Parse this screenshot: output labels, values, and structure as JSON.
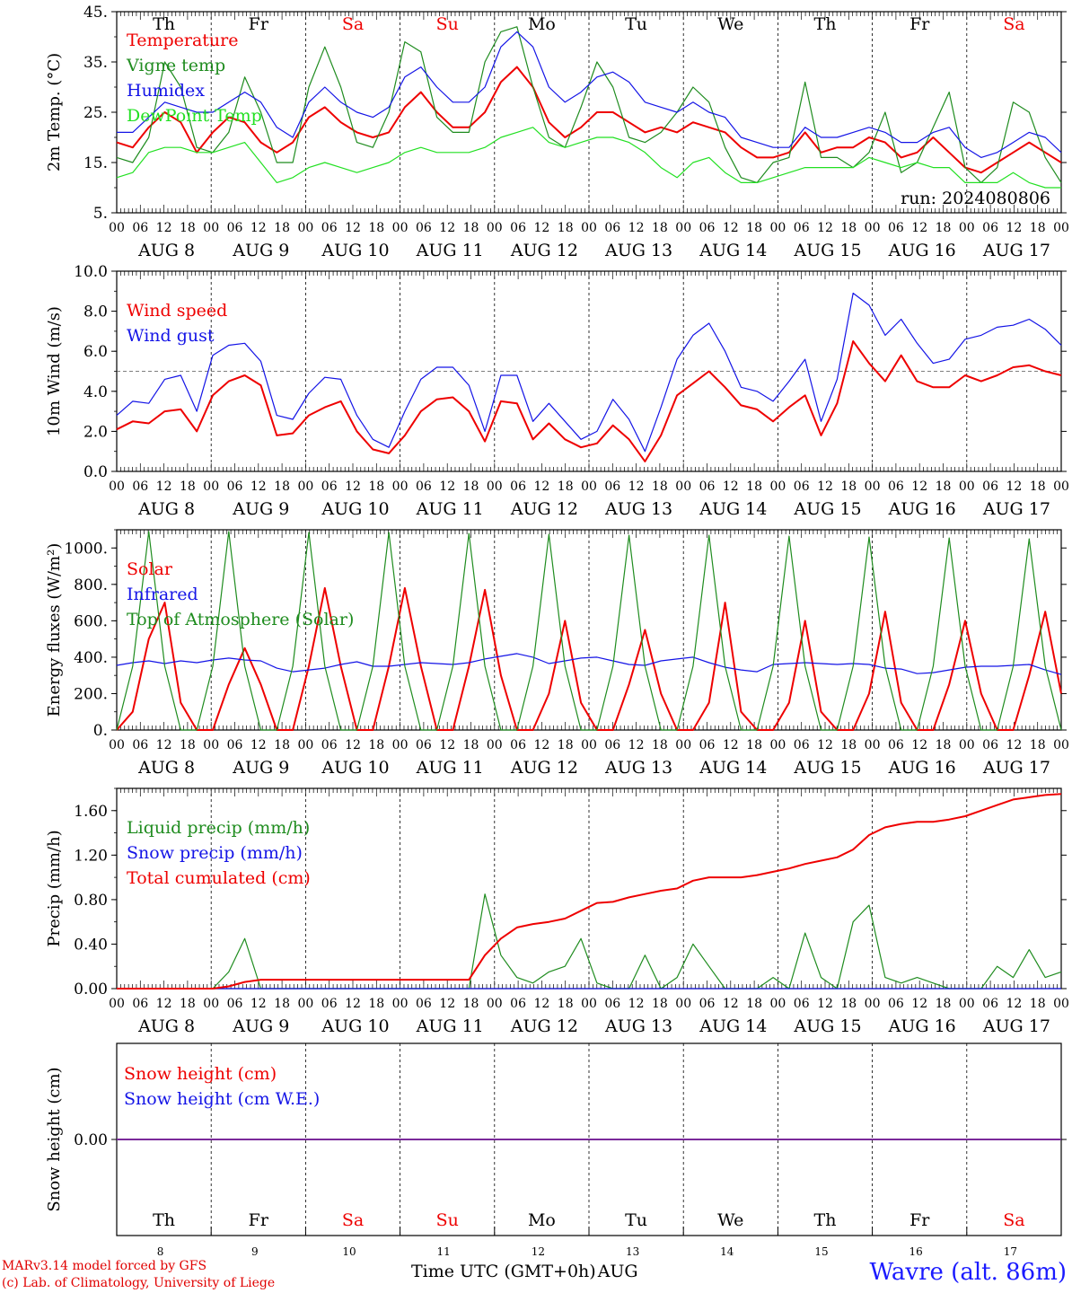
{
  "run_label": "run: 2024080806",
  "hour_ticks": [
    "00",
    "06",
    "12",
    "18"
  ],
  "last_hour": "00",
  "day_labels": [
    "AUG  8",
    "AUG  9",
    "AUG 10",
    "AUG 11",
    "AUG 12",
    "AUG 13",
    "AUG 14",
    "AUG 15",
    "AUG 16",
    "AUG 17"
  ],
  "weekdays": [
    "Th",
    "Fr",
    "Sa",
    "Su",
    "Mo",
    "Tu",
    "We",
    "Th",
    "Fr",
    "Sa"
  ],
  "weekend_flags": [
    false,
    false,
    true,
    true,
    false,
    false,
    false,
    false,
    false,
    true
  ],
  "bottom_day_numbers": [
    "8",
    "9",
    "10",
    "11",
    "12",
    "13",
    "14",
    "15",
    "16",
    "17"
  ],
  "x_axis_title": "Time UTC (GMT+0h)",
  "x_axis_month": "AUG",
  "credit_line1": "MARv3.14 model forced by GFS",
  "credit_line2": "(c) Lab. of Climatology, University of Liege",
  "station": "Wavre (alt. 86m)",
  "colors": {
    "red": "#ee0000",
    "green": "#1f8c1f",
    "blue": "#1414e6",
    "light_green": "#22e022",
    "purple": "#7a2a9a"
  },
  "chart_data": [
    {
      "type": "line",
      "ylabel": "2m Temp. (°C)",
      "ylim": [
        5,
        45
      ],
      "yticks": [
        "5.",
        "15.",
        "25.",
        "35.",
        "45."
      ],
      "x_start": "2024-08-08 00:00 UTC",
      "x_step_hours": 6,
      "series": [
        {
          "name": "Temperature",
          "color": "red",
          "values": [
            19,
            18,
            22,
            25,
            23,
            17,
            21,
            24,
            23,
            19,
            17,
            19,
            24,
            26,
            23,
            21,
            20,
            21,
            26,
            29,
            25,
            22,
            22,
            25,
            31,
            34,
            30,
            23,
            20,
            22,
            25,
            25,
            23,
            21,
            22,
            21,
            23,
            22,
            21,
            18,
            16,
            16,
            17,
            21,
            17,
            18,
            18,
            20,
            19,
            16,
            17,
            20,
            17,
            14,
            13,
            15,
            17,
            19,
            17,
            15
          ]
        },
        {
          "name": "Vigne temp",
          "color": "green",
          "values": [
            16,
            15,
            20,
            35,
            30,
            18,
            17,
            21,
            32,
            25,
            15,
            15,
            30,
            38,
            30,
            19,
            18,
            25,
            39,
            37,
            24,
            21,
            21,
            35,
            41,
            42,
            30,
            20,
            18,
            26,
            35,
            30,
            20,
            19,
            21,
            25,
            30,
            27,
            18,
            12,
            11,
            15,
            16,
            31,
            16,
            16,
            14,
            17,
            25,
            13,
            15,
            22,
            29,
            14,
            11,
            14,
            27,
            25,
            16,
            11
          ]
        },
        {
          "name": "Humidex",
          "color": "blue",
          "values": [
            21,
            21,
            24,
            27,
            26,
            25,
            25,
            27,
            29,
            27,
            22,
            20,
            27,
            30,
            27,
            25,
            24,
            26,
            32,
            34,
            30,
            27,
            27,
            30,
            38,
            41,
            38,
            30,
            27,
            29,
            32,
            33,
            31,
            27,
            26,
            25,
            27,
            25,
            24,
            20,
            19,
            18,
            18,
            22,
            20,
            20,
            21,
            22,
            21,
            19,
            19,
            21,
            22,
            18,
            16,
            17,
            19,
            21,
            20,
            17
          ]
        },
        {
          "name": "DewPoint Temp",
          "color": "light_green",
          "values": [
            12,
            13,
            17,
            18,
            18,
            17,
            17,
            18,
            19,
            15,
            11,
            12,
            14,
            15,
            14,
            13,
            14,
            15,
            17,
            18,
            17,
            17,
            17,
            18,
            20,
            21,
            22,
            19,
            18,
            19,
            20,
            20,
            19,
            17,
            14,
            12,
            15,
            16,
            13,
            11,
            11,
            12,
            13,
            14,
            14,
            14,
            14,
            16,
            15,
            14,
            15,
            14,
            14,
            11,
            11,
            11,
            13,
            11,
            10,
            10
          ]
        }
      ],
      "legend": "left"
    },
    {
      "type": "line",
      "ylabel": "10m Wind (m/s)",
      "ylim": [
        0,
        10
      ],
      "yticks": [
        "0.0",
        "2.0",
        "4.0",
        "6.0",
        "8.0",
        "10.0"
      ],
      "reference_line": 5.0,
      "x_start": "2024-08-08 00:00 UTC",
      "x_step_hours": 6,
      "series": [
        {
          "name": "Wind speed",
          "color": "red",
          "values": [
            2.1,
            2.5,
            2.4,
            3.0,
            3.1,
            2.0,
            3.8,
            4.5,
            4.8,
            4.3,
            1.8,
            1.9,
            2.8,
            3.2,
            3.5,
            2.0,
            1.1,
            0.9,
            1.8,
            3.0,
            3.6,
            3.7,
            3.0,
            1.5,
            3.5,
            3.4,
            1.6,
            2.4,
            1.6,
            1.2,
            1.4,
            2.3,
            1.6,
            0.5,
            1.8,
            3.8,
            4.4,
            5.0,
            4.2,
            3.3,
            3.1,
            2.5,
            3.2,
            3.8,
            1.8,
            3.4,
            6.5,
            5.4,
            4.5,
            5.8,
            4.5,
            4.2,
            4.2,
            4.8,
            4.5,
            4.8,
            5.2,
            5.3,
            5.0,
            4.8
          ]
        },
        {
          "name": "Wind gust",
          "color": "blue",
          "values": [
            2.8,
            3.5,
            3.4,
            4.6,
            4.8,
            3.0,
            5.8,
            6.3,
            6.4,
            5.5,
            2.8,
            2.6,
            3.9,
            4.7,
            4.6,
            2.8,
            1.6,
            1.2,
            3.0,
            4.6,
            5.2,
            5.2,
            4.3,
            2.0,
            4.8,
            4.8,
            2.5,
            3.4,
            2.5,
            1.6,
            2.0,
            3.6,
            2.6,
            1.0,
            3.2,
            5.6,
            6.8,
            7.4,
            6.0,
            4.2,
            4.0,
            3.5,
            4.5,
            5.6,
            2.5,
            4.6,
            8.9,
            8.3,
            6.8,
            7.6,
            6.4,
            5.4,
            5.6,
            6.6,
            6.8,
            7.2,
            7.3,
            7.6,
            7.1,
            6.3
          ]
        }
      ],
      "legend": "left"
    },
    {
      "type": "line",
      "ylabel": "Energy fluxes (W/m²)",
      "ylim": [
        0,
        1100
      ],
      "yticks": [
        "0.",
        "200.",
        "400.",
        "600.",
        "800.",
        "1000."
      ],
      "x_start": "2024-08-08 00:00 UTC",
      "x_step_hours": 6,
      "series": [
        {
          "name": "Solar",
          "color": "red",
          "values": [
            0,
            100,
            500,
            700,
            150,
            0,
            0,
            250,
            450,
            250,
            0,
            0,
            350,
            780,
            350,
            0,
            0,
            350,
            780,
            350,
            0,
            0,
            350,
            770,
            300,
            0,
            0,
            200,
            600,
            150,
            0,
            0,
            250,
            550,
            200,
            0,
            0,
            150,
            700,
            100,
            0,
            0,
            150,
            600,
            100,
            0,
            0,
            200,
            650,
            150,
            0,
            0,
            250,
            600,
            200,
            0,
            0,
            300,
            650,
            200
          ]
        },
        {
          "name": "Infrared",
          "color": "blue",
          "values": [
            355,
            370,
            380,
            365,
            380,
            370,
            385,
            395,
            385,
            380,
            340,
            320,
            330,
            340,
            360,
            375,
            350,
            350,
            360,
            370,
            365,
            360,
            370,
            390,
            405,
            420,
            400,
            365,
            380,
            395,
            400,
            380,
            360,
            355,
            380,
            390,
            400,
            370,
            345,
            330,
            320,
            360,
            365,
            370,
            365,
            360,
            365,
            360,
            340,
            335,
            310,
            315,
            330,
            345,
            350,
            350,
            355,
            360,
            330,
            305
          ]
        },
        {
          "name": "Top of Atmosphere (Solar)",
          "color": "green",
          "values": [
            0,
            350,
            1090,
            350,
            0,
            0,
            350,
            1090,
            350,
            0,
            0,
            350,
            1085,
            350,
            0,
            0,
            350,
            1085,
            350,
            0,
            0,
            350,
            1080,
            350,
            0,
            0,
            350,
            1075,
            350,
            0,
            0,
            350,
            1070,
            350,
            0,
            0,
            350,
            1070,
            350,
            0,
            0,
            350,
            1065,
            350,
            0,
            0,
            350,
            1060,
            350,
            0,
            0,
            350,
            1055,
            350,
            0,
            0,
            350,
            1050,
            350,
            0
          ]
        }
      ],
      "legend": "left"
    },
    {
      "type": "line",
      "ylabel": "Precip (mm/h)",
      "ylim": [
        0,
        1.8
      ],
      "yticks": [
        "0.00",
        "0.40",
        "0.80",
        "1.20",
        "1.60"
      ],
      "x_start": "2024-08-08 00:00 UTC",
      "x_step_hours": 6,
      "series": [
        {
          "name": "Liquid precip (mm/h)",
          "color": "green",
          "values": [
            0,
            0,
            0,
            0,
            0,
            0,
            0,
            0.15,
            0.45,
            0,
            0,
            0,
            0,
            0,
            0,
            0,
            0,
            0,
            0,
            0,
            0,
            0,
            0,
            0.85,
            0.3,
            0.1,
            0.05,
            0.15,
            0.2,
            0.45,
            0.05,
            0,
            0,
            0.3,
            0,
            0.1,
            0.4,
            0.2,
            0,
            0,
            0,
            0.1,
            0,
            0.5,
            0.1,
            0,
            0.6,
            0.75,
            0.1,
            0.05,
            0.1,
            0.05,
            0,
            0,
            0,
            0.2,
            0.1,
            0.35,
            0.1,
            0.15
          ]
        },
        {
          "name": "Snow precip (mm/h)",
          "color": "blue",
          "values": [
            0,
            0,
            0,
            0,
            0,
            0,
            0,
            0,
            0,
            0,
            0,
            0,
            0,
            0,
            0,
            0,
            0,
            0,
            0,
            0,
            0,
            0,
            0,
            0,
            0,
            0,
            0,
            0,
            0,
            0,
            0,
            0,
            0,
            0,
            0,
            0,
            0,
            0,
            0,
            0,
            0,
            0,
            0,
            0,
            0,
            0,
            0,
            0,
            0,
            0,
            0,
            0,
            0,
            0,
            0,
            0,
            0,
            0,
            0,
            0
          ]
        },
        {
          "name": "Total cumulated (cm)",
          "color": "red",
          "values": [
            0,
            0,
            0,
            0,
            0,
            0,
            0,
            0.02,
            0.06,
            0.08,
            0.08,
            0.08,
            0.08,
            0.08,
            0.08,
            0.08,
            0.08,
            0.08,
            0.08,
            0.08,
            0.08,
            0.08,
            0.08,
            0.3,
            0.45,
            0.55,
            0.58,
            0.6,
            0.63,
            0.7,
            0.77,
            0.78,
            0.82,
            0.85,
            0.88,
            0.9,
            0.97,
            1.0,
            1.0,
            1.0,
            1.02,
            1.05,
            1.08,
            1.12,
            1.15,
            1.18,
            1.25,
            1.38,
            1.45,
            1.48,
            1.5,
            1.5,
            1.52,
            1.55,
            1.6,
            1.65,
            1.7,
            1.72,
            1.74,
            1.75
          ]
        }
      ],
      "legend": "left"
    },
    {
      "type": "line",
      "ylabel": "Snow height (cm)",
      "ylim": [
        -1,
        1
      ],
      "yticks": [
        "0.00"
      ],
      "series": [
        {
          "name": "Snow height (cm)",
          "color": "red",
          "values": [
            0,
            0
          ]
        },
        {
          "name": "Snow height (cm W.E.)",
          "color": "blue",
          "values": [
            0,
            0
          ]
        }
      ],
      "legend": "left"
    }
  ]
}
